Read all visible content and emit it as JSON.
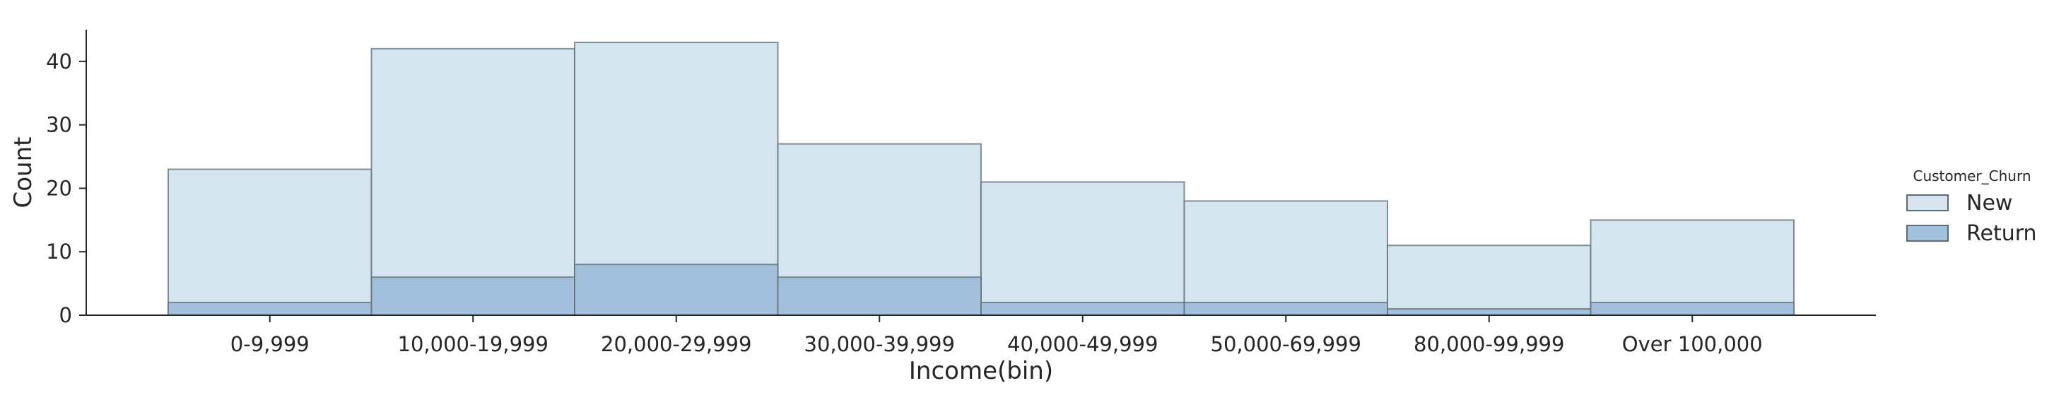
{
  "chart_data": {
    "type": "bar",
    "title": "",
    "xlabel": "Income(bin)",
    "ylabel": "Count",
    "ylim": [
      0,
      45
    ],
    "yticks": [
      0,
      10,
      20,
      30,
      40
    ],
    "grid": false,
    "legend_title": "Customer_Churn",
    "legend_placement": "right",
    "categories": [
      "0-9,999",
      "10,000-19,999",
      "20,000-29,999",
      "30,000-39,999",
      "40,000-49,999",
      "50,000-69,999",
      "80,000-99,999",
      "Over 100,000"
    ],
    "series": [
      {
        "name": "New",
        "values": [
          23,
          42,
          43,
          27,
          21,
          18,
          11,
          15
        ],
        "color": "#d5e5ef"
      },
      {
        "name": "Return",
        "values": [
          2,
          6,
          8,
          6,
          2,
          2,
          1,
          2
        ],
        "color": "#a2c0dc"
      }
    ],
    "edge_color": "#5f6b74"
  }
}
